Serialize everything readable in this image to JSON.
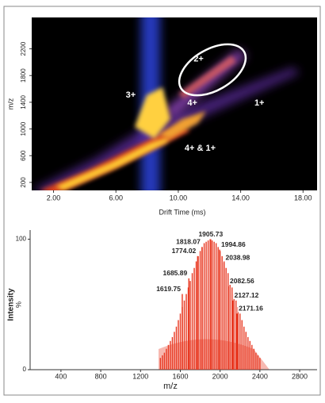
{
  "chart_data": [
    {
      "type": "heatmap",
      "xlabel": "Drift Time (ms)",
      "ylabel": "m/z",
      "xlim": [
        0.6,
        18.9
      ],
      "ylim": [
        80,
        2670
      ],
      "xticks": [
        {
          "value": 2,
          "label": "2.00"
        },
        {
          "value": 6,
          "label": "6.00"
        },
        {
          "value": 10,
          "label": "10.00"
        },
        {
          "value": 14,
          "label": "14.00"
        },
        {
          "value": 18,
          "label": "18.00"
        }
      ],
      "yticks": [
        200,
        600,
        1000,
        1400,
        1800,
        2200
      ],
      "annotations": [
        {
          "text": "2+",
          "x": 11.3,
          "y": 2047
        },
        {
          "text": "3+",
          "x": 6.95,
          "y": 1505
        },
        {
          "text": "4+",
          "x": 10.9,
          "y": 1386
        },
        {
          "text": "1+",
          "x": 15.2,
          "y": 1386
        },
        {
          "text": "4+ & 1+",
          "x": 11.4,
          "y": 709
        }
      ]
    },
    {
      "type": "spectrum",
      "xlabel": "m/z",
      "ylabel": "Intensity",
      "yunit": "%",
      "color": "#e8361f",
      "xlim": [
        90,
        2975
      ],
      "ylim": [
        0,
        107
      ],
      "xticks": [
        400,
        800,
        1200,
        1600,
        2000,
        2400,
        2800
      ],
      "yticks": [
        0,
        100
      ],
      "x": [
        1400,
        1420,
        1440,
        1460,
        1480,
        1500,
        1520,
        1540,
        1560,
        1580,
        1600,
        1620,
        1640,
        1660,
        1680,
        1700,
        1720,
        1740,
        1760,
        1780,
        1800,
        1820,
        1840,
        1860,
        1880,
        1900,
        1920,
        1940,
        1960,
        1980,
        2000,
        2020,
        2040,
        2060,
        2080,
        2100,
        2120,
        2140,
        2160,
        2180,
        2200,
        2220,
        2240,
        2260,
        2280,
        2300,
        2320,
        2340,
        2360,
        2380,
        2400
      ],
      "values": [
        9,
        11,
        13,
        16,
        19,
        22,
        25,
        29,
        33,
        38,
        43,
        48,
        53,
        58,
        63,
        68,
        74,
        78,
        83,
        87,
        91,
        94,
        97,
        98,
        99,
        100,
        99,
        98,
        97,
        94,
        91,
        87,
        83,
        78,
        74,
        68,
        63,
        58,
        53,
        48,
        43,
        38,
        33,
        29,
        25,
        22,
        19,
        16,
        13,
        11,
        9
      ],
      "peaks": {
        "x": [
          1905.73,
          1818.07,
          1994.86,
          1774.02,
          2038.98,
          1685.89,
          2082.56,
          1619.75,
          2127.12,
          2171.16
        ],
        "values": [
          100,
          94,
          92,
          87,
          82,
          70,
          64,
          58,
          53,
          43
        ]
      }
    }
  ]
}
